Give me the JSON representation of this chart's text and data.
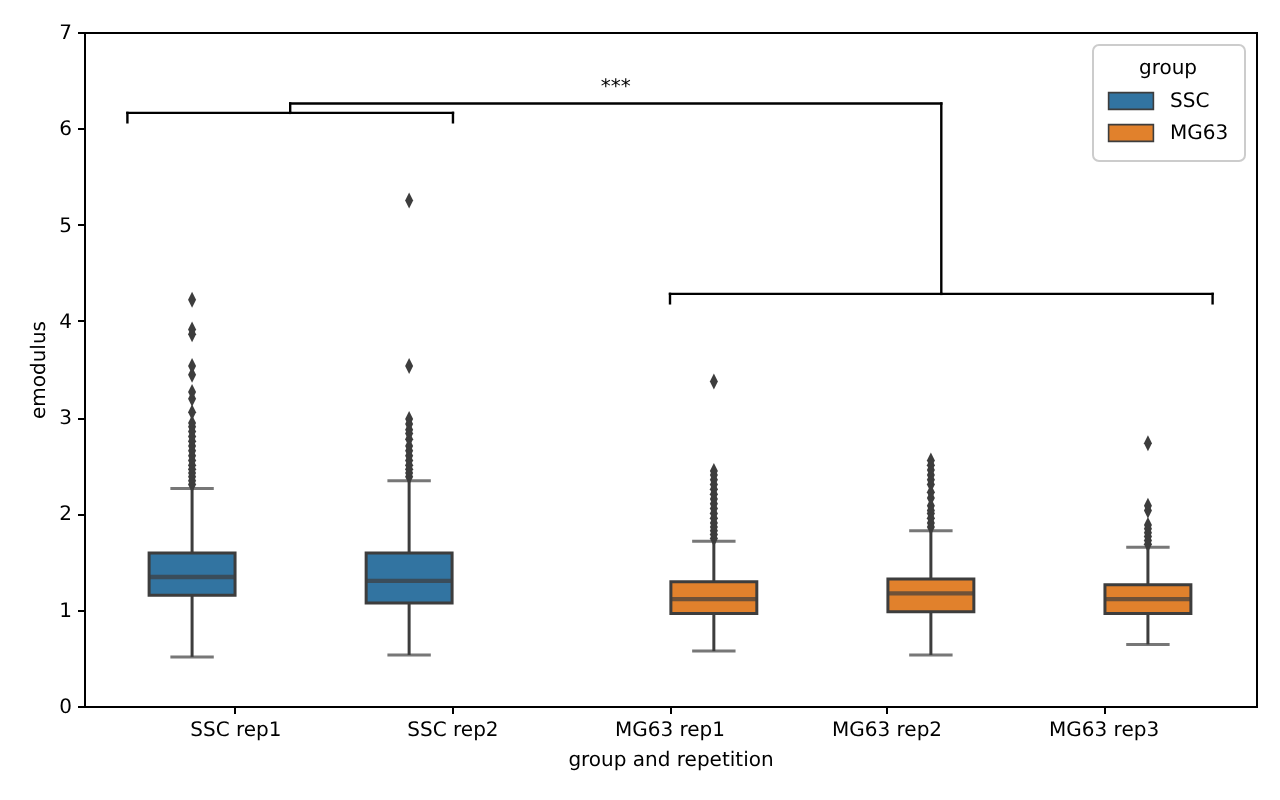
{
  "chart_data": {
    "type": "box",
    "categories": [
      "SSC rep1",
      "SSC rep2",
      "MG63 rep1",
      "MG63 rep2",
      "MG63 rep3"
    ],
    "xlabel": "group and repetition",
    "ylabel": "emodulus",
    "legend_title": "group",
    "legend": "top right",
    "marker": "diamond",
    "ylim": [
      0,
      7
    ],
    "yticks": [
      0,
      1,
      2,
      3,
      4,
      5,
      6,
      7
    ],
    "annotations": [
      "***"
    ],
    "series": [
      {
        "name": "SSC",
        "color": "#3274a1",
        "boxes": [
          {
            "low": 0.51,
            "q1": 1.15,
            "median": 1.34,
            "q3": 1.59,
            "high": 2.26,
            "outliers": [
              2.3,
              2.34,
              2.38,
              2.42,
              2.46,
              2.5,
              2.55,
              2.6,
              2.65,
              2.7,
              2.75,
              2.8,
              2.85,
              2.9,
              2.94,
              3.05,
              3.19,
              3.26,
              3.44,
              3.53,
              3.86,
              3.91,
              4.22
            ]
          },
          {
            "low": 0.53,
            "q1": 1.07,
            "median": 1.3,
            "q3": 1.59,
            "high": 2.34,
            "outliers": [
              2.38,
              2.42,
              2.46,
              2.5,
              2.55,
              2.6,
              2.65,
              2.7,
              2.77,
              2.83,
              2.87,
              2.93,
              2.98,
              3.53,
              5.25
            ]
          },
          null,
          null,
          null
        ]
      },
      {
        "name": "MG63",
        "color": "#e1812c",
        "boxes": [
          null,
          null,
          {
            "low": 0.57,
            "q1": 0.96,
            "median": 1.11,
            "q3": 1.29,
            "high": 1.71,
            "outliers": [
              1.74,
              1.78,
              1.82,
              1.86,
              1.9,
              1.95,
              2.0,
              2.05,
              2.1,
              2.15,
              2.2,
              2.25,
              2.3,
              2.35,
              2.4,
              2.44,
              3.37
            ]
          },
          {
            "low": 0.53,
            "q1": 0.98,
            "median": 1.17,
            "q3": 1.32,
            "high": 1.82,
            "outliers": [
              1.86,
              1.9,
              1.95,
              2.0,
              2.03,
              2.08,
              2.16,
              2.22,
              2.3,
              2.35,
              2.4,
              2.45,
              2.5,
              2.55
            ]
          },
          {
            "low": 0.64,
            "q1": 0.96,
            "median": 1.11,
            "q3": 1.26,
            "high": 1.65,
            "outliers": [
              1.68,
              1.72,
              1.76,
              1.8,
              1.84,
              1.88,
              2.03,
              2.08,
              2.73
            ]
          }
        ]
      }
    ]
  }
}
